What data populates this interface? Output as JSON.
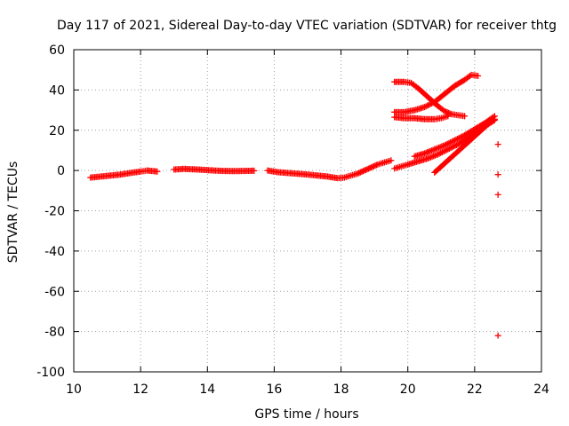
{
  "chart_data": {
    "type": "scatter",
    "title": "Day 117 of 2021, Sidereal Day-to-day VTEC variation (SDTVAR) for receiver thtg",
    "xlabel": "GPS time / hours",
    "ylabel": "SDTVAR / TECUs",
    "xlim": [
      10,
      24
    ],
    "ylim": [
      -100,
      60
    ],
    "x_ticks": [
      10,
      12,
      14,
      16,
      18,
      20,
      22,
      24
    ],
    "y_ticks": [
      -100,
      -80,
      -60,
      -40,
      -20,
      0,
      20,
      40,
      60
    ],
    "x_tick_labels": [
      "10",
      "12",
      "14",
      "16",
      "18",
      "20",
      "22",
      "24"
    ],
    "y_tick_labels": [
      "-100",
      "-80",
      "-60",
      "-40",
      "-20",
      "0",
      "20",
      "40",
      "60"
    ],
    "grid": true,
    "marker": "+",
    "color": "#ff0000",
    "series": [
      {
        "x": [
          10.5,
          10.8,
          11.1,
          11.4,
          11.7,
          12.0,
          12.2,
          12.5
        ],
        "y": [
          -3.5,
          -3.0,
          -2.5,
          -2.0,
          -1.2,
          -0.5,
          0.0,
          -0.5
        ]
      },
      {
        "x": [
          13.0,
          13.3,
          13.6,
          13.9,
          14.2,
          14.5,
          14.8,
          15.1,
          15.4
        ],
        "y": [
          0.5,
          0.8,
          0.6,
          0.3,
          0.0,
          -0.2,
          -0.3,
          -0.2,
          -0.1
        ]
      },
      {
        "x": [
          15.8,
          16.1,
          16.4,
          16.7,
          17.0,
          17.3,
          17.6,
          17.9,
          18.1,
          18.3,
          18.5,
          18.7,
          18.9,
          19.1,
          19.3,
          19.5
        ],
        "y": [
          0.0,
          -0.8,
          -1.2,
          -1.6,
          -2.0,
          -2.5,
          -3.0,
          -3.8,
          -3.5,
          -2.5,
          -1.5,
          0.0,
          1.5,
          3.0,
          4.0,
          5.0
        ]
      },
      {
        "x": [
          19.6,
          19.8,
          20.0,
          20.3,
          20.6,
          20.9,
          21.2,
          21.5,
          21.8,
          22.0,
          22.3,
          22.6
        ],
        "y": [
          1.0,
          2.0,
          3.0,
          4.5,
          6.0,
          8.0,
          10.5,
          13.0,
          16.0,
          19.0,
          22.0,
          25.0
        ]
      },
      {
        "x": [
          20.2,
          20.5,
          20.8,
          21.1,
          21.4,
          21.7,
          22.0,
          22.3,
          22.6
        ],
        "y": [
          7.0,
          8.5,
          10.5,
          12.5,
          15.0,
          17.5,
          20.5,
          23.5,
          27.0
        ]
      },
      {
        "x": [
          20.8,
          21.0,
          21.2,
          21.4,
          21.6,
          21.8,
          22.0,
          22.2,
          22.4,
          22.6
        ],
        "y": [
          -1.0,
          2.0,
          5.0,
          8.0,
          11.0,
          14.0,
          17.0,
          20.0,
          23.0,
          25.5
        ]
      },
      {
        "x": [
          19.6,
          19.9,
          20.1,
          20.3,
          20.5,
          20.7,
          20.9,
          21.1,
          21.3,
          21.5,
          21.7
        ],
        "y": [
          44.0,
          44.0,
          43.5,
          41.0,
          38.0,
          35.0,
          32.0,
          29.5,
          28.0,
          27.5,
          27.0
        ]
      },
      {
        "x": [
          19.6,
          19.9,
          20.2,
          20.5,
          20.8,
          21.1,
          21.4,
          21.7,
          21.9,
          22.1
        ],
        "y": [
          29.0,
          29.0,
          30.0,
          31.5,
          34.0,
          38.0,
          42.0,
          45.0,
          47.5,
          47.0
        ]
      },
      {
        "x": [
          19.6,
          19.9,
          20.2,
          20.5,
          20.8,
          21.0,
          21.2
        ],
        "y": [
          26.5,
          26.0,
          26.0,
          25.5,
          25.5,
          26.0,
          27.0
        ]
      },
      {
        "x": [
          22.7,
          22.7,
          22.7,
          22.7
        ],
        "y": [
          13.0,
          -2.0,
          -12.0,
          -82.0
        ]
      }
    ]
  }
}
